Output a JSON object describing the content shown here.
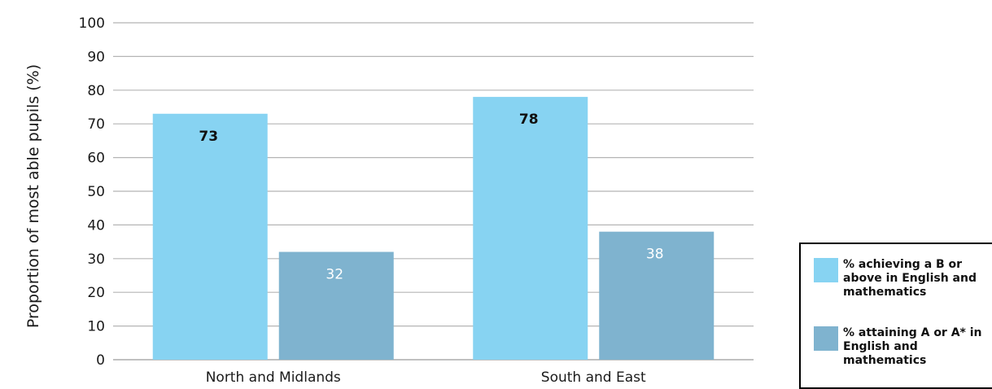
{
  "chart_data": {
    "type": "bar",
    "categories": [
      "North and Midlands",
      "South and East"
    ],
    "series": [
      {
        "name": "% achieving a B or above in English and mathematics",
        "values": [
          73,
          78
        ],
        "color": "#87d3f2"
      },
      {
        "name": "% attaining A or A* in English and mathematics",
        "values": [
          32,
          38
        ],
        "color": "#7fb3cf"
      }
    ],
    "ylabel": "Proportion of most able pupils (%)",
    "xlabel": "",
    "ylim": [
      0,
      100
    ],
    "yticks": [
      0,
      10,
      20,
      30,
      40,
      50,
      60,
      70,
      80,
      90,
      100
    ],
    "grid": true,
    "legend": "bottom-right"
  }
}
